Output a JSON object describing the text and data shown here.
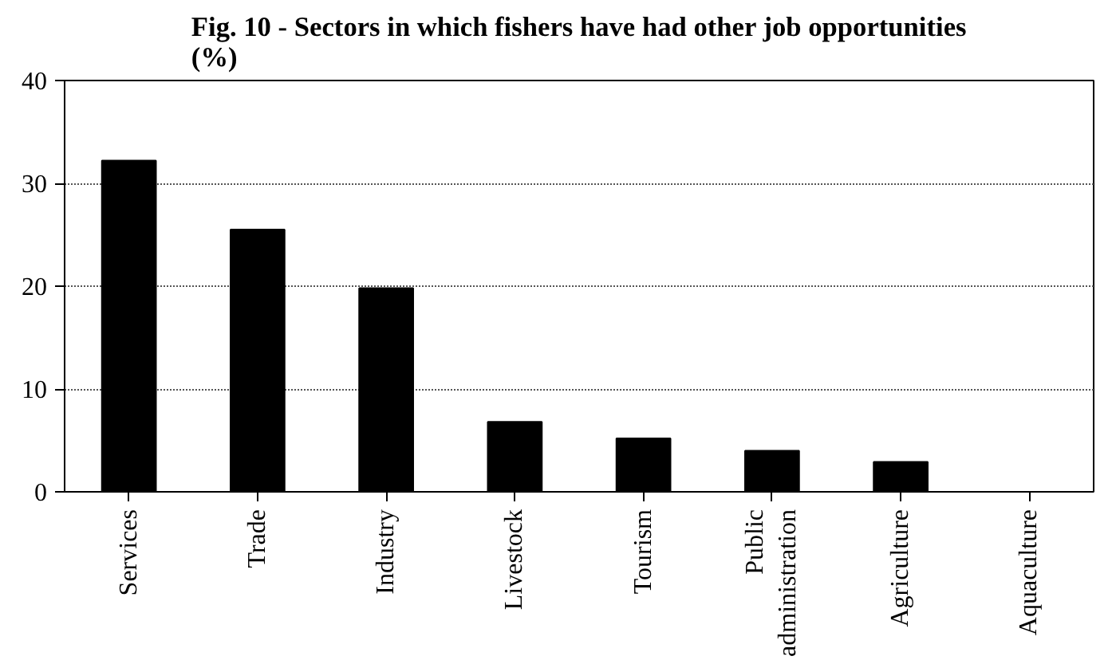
{
  "chart_data": {
    "type": "bar",
    "title": "Fig. 10 - Sectors in which fishers have had other job opportunities (%)",
    "categories": [
      "Services",
      "Trade",
      "Industry",
      "Livestock",
      "Tourism",
      "Public administration",
      "Agriculture",
      "Aquaculture"
    ],
    "values": [
      32.2,
      25.5,
      19.8,
      6.8,
      5.2,
      4.0,
      2.9,
      0
    ],
    "color": "#000000",
    "ylim": [
      0,
      40
    ],
    "yticks": [
      0,
      10,
      20,
      30,
      40
    ],
    "grid": "y"
  }
}
